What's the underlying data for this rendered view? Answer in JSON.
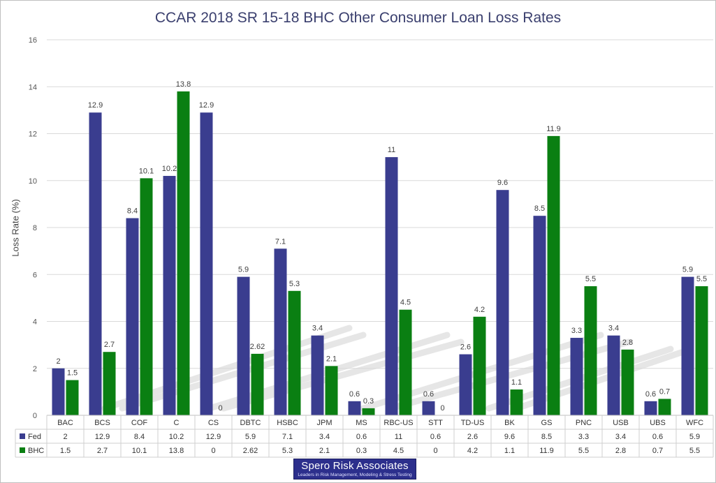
{
  "chart_data": {
    "type": "bar",
    "title": "CCAR 2018 SR 15-18 BHC Other Consumer Loan Loss Rates",
    "xlabel": "",
    "ylabel": "Loss Rate (%)",
    "ylim": [
      0,
      16
    ],
    "yticks": [
      0,
      2,
      4,
      6,
      8,
      10,
      12,
      14,
      16
    ],
    "grid": true,
    "legend": "data-table",
    "categories": [
      "BAC",
      "BCS",
      "COF",
      "C",
      "CS",
      "DBTC",
      "HSBC",
      "JPM",
      "MS",
      "RBC-US",
      "STT",
      "TD-US",
      "BK",
      "GS",
      "PNC",
      "USB",
      "UBS",
      "WFC"
    ],
    "series": [
      {
        "name": "Fed",
        "color": "#3a3d8f",
        "values": [
          2,
          12.9,
          8.4,
          10.2,
          12.9,
          5.9,
          7.1,
          3.4,
          0.6,
          11,
          0.6,
          2.6,
          9.6,
          8.5,
          3.3,
          3.4,
          0.6,
          5.9
        ],
        "labels": [
          "2",
          "12.9",
          "8.4",
          "10.2",
          "12.9",
          "5.9",
          "7.1",
          "3.4",
          "0.6",
          "11",
          "0.6",
          "2.6",
          "9.6",
          "8.5",
          "3.3",
          "3.4",
          "0.6",
          "5.9"
        ]
      },
      {
        "name": "BHC",
        "color": "#0a7f12",
        "values": [
          1.5,
          2.7,
          10.1,
          13.8,
          0,
          2.62,
          5.3,
          2.1,
          0.3,
          4.5,
          0,
          4.2,
          1.1,
          11.9,
          5.5,
          2.8,
          0.7,
          5.5
        ],
        "labels": [
          "1.5",
          "2.7",
          "10.1",
          "13.8",
          "0",
          "2.62",
          "5.3",
          "2.1",
          "0.3",
          "4.5",
          "0",
          "4.2",
          "1.1",
          "11.9",
          "5.5",
          "2.8",
          "0.7",
          "5.5"
        ]
      }
    ]
  },
  "watermark": {
    "name": "Spero Risk Associates",
    "tagline": "Leaders in Risk Management, Modeling & Stress Testing"
  }
}
